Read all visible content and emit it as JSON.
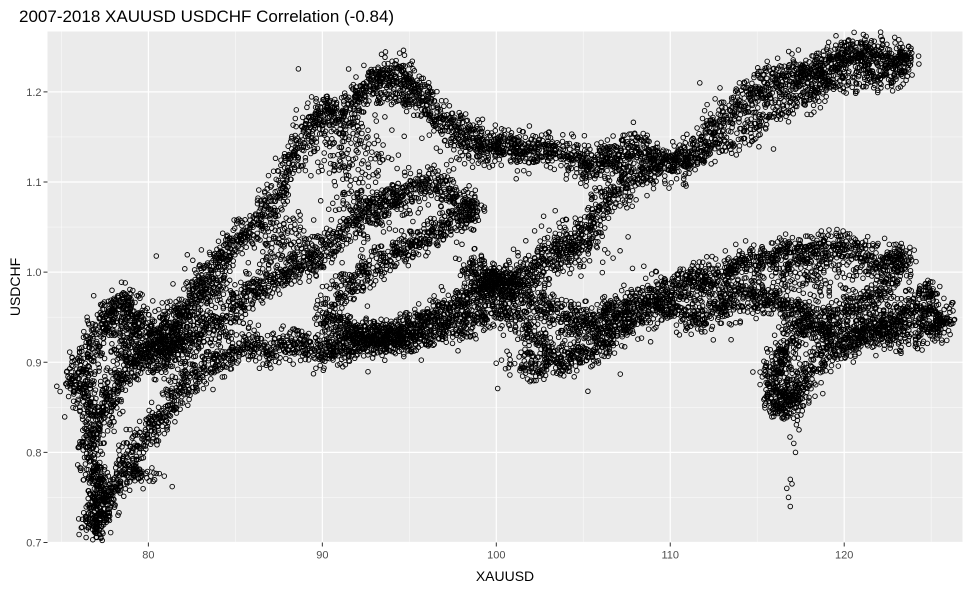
{
  "chart_data": {
    "type": "scatter",
    "title": "2007-2018 XAUUSD USDCHF Correlation (-0.84)",
    "xlabel": "XAUUSD",
    "ylabel": "USDCHF",
    "xlim": [
      74.2,
      126.8
    ],
    "ylim": [
      0.7,
      1.267
    ],
    "x_ticks": [
      80,
      90,
      100,
      110,
      120
    ],
    "y_ticks": [
      0.7,
      0.8,
      0.9,
      1.0,
      1.1,
      1.2
    ],
    "x_tick_labels": [
      "80",
      "90",
      "100",
      "110",
      "120"
    ],
    "y_tick_labels": [
      "0.7",
      "0.8",
      "0.9",
      "1.0",
      "1.1",
      "1.2"
    ],
    "grid": true,
    "legend": "none",
    "colors": {
      "panel": "#ebebeb",
      "grid_major": "#ffffff",
      "point": "#000000"
    },
    "point_shape": "open-circle",
    "trajectory": [
      [
        75.6,
        0.87
      ],
      [
        76.2,
        0.9
      ],
      [
        77.0,
        0.93
      ],
      [
        77.8,
        0.96
      ],
      [
        78.6,
        0.97
      ],
      [
        79.2,
        0.95
      ],
      [
        80.0,
        0.93
      ],
      [
        80.8,
        0.92
      ],
      [
        81.5,
        0.94
      ],
      [
        82.3,
        0.96
      ],
      [
        83.0,
        0.98
      ],
      [
        83.7,
        1.0
      ],
      [
        84.4,
        1.02
      ],
      [
        85.2,
        1.04
      ],
      [
        86.0,
        1.05
      ],
      [
        86.8,
        1.07
      ],
      [
        87.5,
        1.09
      ],
      [
        88.2,
        1.12
      ],
      [
        88.9,
        1.15
      ],
      [
        89.6,
        1.17
      ],
      [
        90.4,
        1.18
      ],
      [
        91.2,
        1.17
      ],
      [
        92.0,
        1.19
      ],
      [
        92.8,
        1.21
      ],
      [
        93.6,
        1.22
      ],
      [
        94.5,
        1.22
      ],
      [
        95.3,
        1.2
      ],
      [
        96.0,
        1.19
      ],
      [
        96.7,
        1.17
      ],
      [
        97.5,
        1.16
      ],
      [
        98.3,
        1.15
      ],
      [
        99.2,
        1.14
      ],
      [
        100.0,
        1.14
      ],
      [
        101.0,
        1.14
      ],
      [
        102.0,
        1.13
      ],
      [
        103.0,
        1.14
      ],
      [
        104.0,
        1.13
      ],
      [
        105.0,
        1.12
      ],
      [
        106.0,
        1.12
      ],
      [
        107.0,
        1.13
      ],
      [
        108.0,
        1.14
      ],
      [
        109.0,
        1.13
      ],
      [
        110.0,
        1.12
      ],
      [
        111.0,
        1.13
      ],
      [
        112.0,
        1.15
      ],
      [
        113.0,
        1.17
      ],
      [
        114.0,
        1.19
      ],
      [
        115.0,
        1.2
      ],
      [
        116.0,
        1.21
      ],
      [
        117.0,
        1.22
      ],
      [
        118.0,
        1.22
      ],
      [
        119.0,
        1.23
      ],
      [
        120.0,
        1.24
      ],
      [
        121.0,
        1.25
      ],
      [
        122.0,
        1.24
      ],
      [
        123.0,
        1.23
      ],
      [
        123.6,
        1.24
      ],
      [
        123.0,
        1.22
      ],
      [
        121.5,
        1.22
      ],
      [
        120.0,
        1.22
      ],
      [
        118.5,
        1.2
      ],
      [
        117.0,
        1.19
      ],
      [
        115.5,
        1.17
      ],
      [
        114.0,
        1.15
      ],
      [
        112.5,
        1.14
      ],
      [
        111.0,
        1.12
      ],
      [
        109.5,
        1.12
      ],
      [
        108.0,
        1.1
      ],
      [
        107.0,
        1.09
      ],
      [
        106.0,
        1.07
      ],
      [
        105.5,
        1.05
      ],
      [
        104.5,
        1.03
      ],
      [
        103.5,
        1.02
      ],
      [
        102.5,
        1.01
      ],
      [
        101.5,
        1.0
      ],
      [
        100.5,
        0.99
      ],
      [
        99.8,
        0.99
      ],
      [
        99.0,
        0.98
      ],
      [
        98.3,
        0.97
      ],
      [
        97.5,
        0.96
      ],
      [
        96.8,
        0.95
      ],
      [
        96.0,
        0.95
      ],
      [
        95.2,
        0.94
      ],
      [
        94.3,
        0.93
      ],
      [
        93.5,
        0.93
      ],
      [
        92.6,
        0.92
      ],
      [
        91.7,
        0.92
      ],
      [
        90.8,
        0.91
      ],
      [
        90.0,
        0.91
      ],
      [
        89.0,
        0.92
      ],
      [
        88.0,
        0.92
      ],
      [
        87.0,
        0.91
      ],
      [
        86.0,
        0.92
      ],
      [
        85.0,
        0.91
      ],
      [
        84.0,
        0.9
      ],
      [
        83.0,
        0.89
      ],
      [
        82.2,
        0.88
      ],
      [
        81.5,
        0.86
      ],
      [
        80.8,
        0.84
      ],
      [
        80.0,
        0.82
      ],
      [
        79.2,
        0.8
      ],
      [
        78.5,
        0.78
      ],
      [
        77.8,
        0.75
      ],
      [
        77.2,
        0.73
      ],
      [
        76.9,
        0.72
      ],
      [
        76.8,
        0.73
      ],
      [
        77.0,
        0.77
      ],
      [
        76.5,
        0.8
      ],
      [
        76.9,
        0.82
      ],
      [
        77.3,
        0.84
      ],
      [
        77.8,
        0.86
      ],
      [
        78.4,
        0.88
      ],
      [
        79.0,
        0.9
      ],
      [
        79.8,
        0.91
      ],
      [
        80.5,
        0.9
      ],
      [
        81.2,
        0.91
      ],
      [
        82.0,
        0.92
      ],
      [
        83.0,
        0.93
      ],
      [
        84.0,
        0.94
      ],
      [
        85.0,
        0.96
      ],
      [
        86.0,
        0.98
      ],
      [
        87.0,
        0.99
      ],
      [
        88.0,
        1.0
      ],
      [
        89.0,
        1.01
      ],
      [
        90.0,
        1.02
      ],
      [
        91.0,
        1.04
      ],
      [
        92.0,
        1.06
      ],
      [
        93.0,
        1.07
      ],
      [
        94.0,
        1.08
      ],
      [
        95.0,
        1.09
      ],
      [
        96.0,
        1.1
      ],
      [
        97.0,
        1.09
      ],
      [
        98.0,
        1.08
      ],
      [
        98.8,
        1.07
      ],
      [
        98.0,
        1.06
      ],
      [
        97.0,
        1.05
      ],
      [
        96.0,
        1.04
      ],
      [
        95.0,
        1.03
      ],
      [
        94.0,
        1.02
      ],
      [
        93.0,
        1.01
      ],
      [
        92.0,
        0.99
      ],
      [
        91.0,
        0.98
      ],
      [
        90.0,
        0.95
      ],
      [
        91.0,
        0.94
      ],
      [
        92.0,
        0.93
      ],
      [
        93.0,
        0.93
      ],
      [
        94.0,
        0.92
      ],
      [
        95.0,
        0.93
      ],
      [
        96.0,
        0.93
      ],
      [
        97.0,
        0.94
      ],
      [
        98.0,
        0.94
      ],
      [
        99.0,
        0.95
      ],
      [
        100.0,
        0.96
      ],
      [
        101.0,
        0.95
      ],
      [
        102.0,
        0.93
      ],
      [
        103.0,
        0.91
      ],
      [
        104.0,
        0.9
      ],
      [
        105.0,
        0.91
      ],
      [
        106.0,
        0.92
      ],
      [
        107.0,
        0.94
      ],
      [
        108.0,
        0.95
      ],
      [
        109.0,
        0.96
      ],
      [
        110.0,
        0.98
      ],
      [
        111.0,
        0.99
      ],
      [
        112.0,
        0.99
      ],
      [
        113.0,
        1.0
      ],
      [
        114.0,
        1.01
      ],
      [
        115.0,
        1.01
      ],
      [
        116.0,
        1.02
      ],
      [
        117.0,
        1.02
      ],
      [
        118.0,
        1.02
      ],
      [
        119.0,
        1.03
      ],
      [
        120.0,
        1.03
      ],
      [
        121.0,
        1.02
      ],
      [
        122.0,
        1.01
      ],
      [
        123.0,
        1.02
      ],
      [
        123.5,
        1.01
      ],
      [
        122.5,
        0.99
      ],
      [
        121.5,
        0.97
      ],
      [
        120.5,
        0.96
      ],
      [
        119.5,
        0.95
      ],
      [
        118.5,
        0.94
      ],
      [
        119.0,
        0.93
      ],
      [
        120.0,
        0.92
      ],
      [
        121.0,
        0.93
      ],
      [
        122.0,
        0.94
      ],
      [
        123.0,
        0.95
      ],
      [
        124.0,
        0.96
      ],
      [
        125.0,
        0.98
      ],
      [
        124.5,
        0.95
      ],
      [
        125.5,
        0.94
      ],
      [
        125.8,
        0.95
      ],
      [
        124.0,
        0.93
      ],
      [
        122.0,
        0.93
      ],
      [
        120.0,
        0.92
      ],
      [
        118.5,
        0.9
      ],
      [
        117.8,
        0.88
      ],
      [
        117.2,
        0.86
      ],
      [
        116.5,
        0.85
      ],
      [
        116.0,
        0.86
      ],
      [
        115.8,
        0.88
      ],
      [
        116.2,
        0.9
      ],
      [
        116.8,
        0.92
      ],
      [
        117.5,
        0.94
      ],
      [
        118.0,
        0.95
      ],
      [
        117.0,
        0.96
      ],
      [
        116.0,
        0.97
      ],
      [
        115.0,
        0.97
      ],
      [
        114.0,
        0.97
      ],
      [
        113.0,
        0.96
      ],
      [
        112.0,
        0.95
      ],
      [
        111.0,
        0.95
      ],
      [
        110.0,
        0.96
      ],
      [
        109.0,
        0.97
      ],
      [
        108.0,
        0.97
      ],
      [
        107.0,
        0.96
      ],
      [
        106.0,
        0.95
      ],
      [
        105.0,
        0.94
      ],
      [
        104.0,
        0.95
      ],
      [
        103.0,
        0.96
      ],
      [
        102.0,
        0.97
      ],
      [
        101.0,
        0.98
      ],
      [
        100.0,
        0.99
      ],
      [
        99.0,
        1.0
      ],
      [
        98.5,
        1.01
      ]
    ],
    "clusters": [
      {
        "x": 76.5,
        "y": 0.87,
        "sx": 1.0,
        "sy": 0.03,
        "n": 140
      },
      {
        "x": 78.5,
        "y": 0.93,
        "sx": 1.2,
        "sy": 0.035,
        "n": 160
      },
      {
        "x": 81.0,
        "y": 0.93,
        "sx": 1.4,
        "sy": 0.03,
        "n": 160
      },
      {
        "x": 77.2,
        "y": 0.76,
        "sx": 0.6,
        "sy": 0.03,
        "n": 90
      },
      {
        "x": 79.5,
        "y": 0.775,
        "sx": 1.1,
        "sy": 0.01,
        "n": 60
      },
      {
        "x": 83.5,
        "y": 0.98,
        "sx": 1.5,
        "sy": 0.03,
        "n": 120
      },
      {
        "x": 88.0,
        "y": 1.03,
        "sx": 2.0,
        "sy": 0.03,
        "n": 150
      },
      {
        "x": 91.0,
        "y": 1.14,
        "sx": 2.0,
        "sy": 0.04,
        "n": 160
      },
      {
        "x": 94.0,
        "y": 1.2,
        "sx": 2.0,
        "sy": 0.02,
        "n": 120
      },
      {
        "x": 93.0,
        "y": 1.08,
        "sx": 2.0,
        "sy": 0.035,
        "n": 130
      },
      {
        "x": 100.0,
        "y": 1.14,
        "sx": 3.0,
        "sy": 0.02,
        "n": 130
      },
      {
        "x": 107.0,
        "y": 1.12,
        "sx": 2.2,
        "sy": 0.025,
        "n": 130
      },
      {
        "x": 118.0,
        "y": 1.215,
        "sx": 3.0,
        "sy": 0.02,
        "n": 130
      },
      {
        "x": 120.5,
        "y": 1.235,
        "sx": 2.0,
        "sy": 0.01,
        "n": 80
      },
      {
        "x": 104.0,
        "y": 1.03,
        "sx": 2.0,
        "sy": 0.025,
        "n": 120
      },
      {
        "x": 93.0,
        "y": 0.93,
        "sx": 3.0,
        "sy": 0.012,
        "n": 140
      },
      {
        "x": 102.5,
        "y": 0.895,
        "sx": 1.8,
        "sy": 0.015,
        "n": 110
      },
      {
        "x": 106.0,
        "y": 0.94,
        "sx": 2.0,
        "sy": 0.02,
        "n": 110
      },
      {
        "x": 113.0,
        "y": 0.98,
        "sx": 3.0,
        "sy": 0.025,
        "n": 170
      },
      {
        "x": 118.5,
        "y": 1.0,
        "sx": 2.5,
        "sy": 0.025,
        "n": 140
      },
      {
        "x": 122.5,
        "y": 0.94,
        "sx": 1.8,
        "sy": 0.02,
        "n": 120
      },
      {
        "x": 116.8,
        "y": 0.87,
        "sx": 0.7,
        "sy": 0.03,
        "n": 80
      },
      {
        "x": 100.5,
        "y": 0.985,
        "sx": 1.6,
        "sy": 0.015,
        "n": 90
      }
    ],
    "sparse_points": [
      [
        116.9,
        0.74
      ],
      [
        116.8,
        0.75
      ],
      [
        117.0,
        0.765
      ],
      [
        116.9,
        0.77
      ],
      [
        116.7,
        0.76
      ],
      [
        117.2,
        0.8
      ],
      [
        117.1,
        0.81
      ],
      [
        117.4,
        0.825
      ],
      [
        117.3,
        0.84
      ],
      [
        116.0,
        0.93
      ],
      [
        117.4,
        0.98
      ],
      [
        117.6,
        0.985
      ],
      [
        99.2,
        0.975
      ],
      [
        88.5,
        1.18
      ],
      [
        111.7,
        1.21
      ],
      [
        76.1,
        0.78
      ],
      [
        78.0,
        0.77
      ],
      [
        80.0,
        0.815
      ],
      [
        95.0,
        1.23
      ],
      [
        113.5,
        0.925
      ]
    ]
  }
}
